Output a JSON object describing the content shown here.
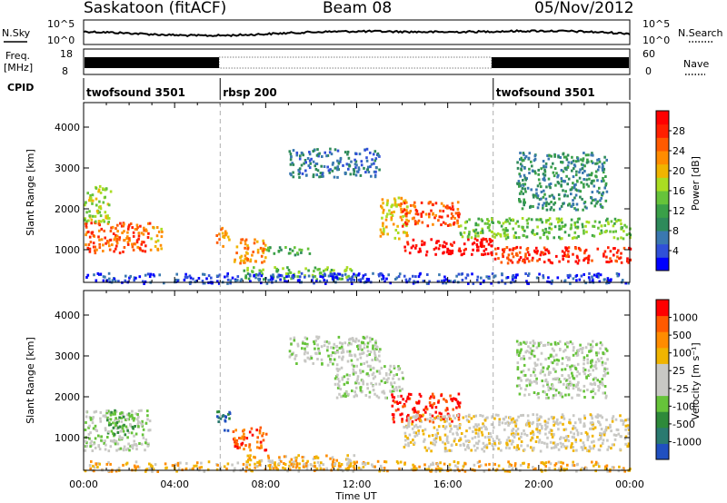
{
  "header": {
    "site": "Saskatoon (fitACF)",
    "beam": "Beam 08",
    "date": "05/Nov/2012"
  },
  "top_panels": {
    "nsky_label": "N.Sky",
    "nsearch_label": "N.Search",
    "freq_label_1": "Freq.",
    "freq_label_2": "[MHz]",
    "nave_label": "Nave",
    "cpid_label": "CPID",
    "noise_ticks_left": [
      "10^5",
      "10^0"
    ],
    "noise_ticks_right": [
      "10^5",
      "10^0"
    ],
    "freq_ticks": [
      "18",
      "8"
    ],
    "nave_ticks": [
      "60",
      "0"
    ]
  },
  "cpid_segments": [
    {
      "label": "twofsound 3501",
      "start_hour": 0,
      "end_hour": 6
    },
    {
      "label": "rbsp 200",
      "start_hour": 6,
      "end_hour": 18
    },
    {
      "label": "twofsound 3501",
      "start_hour": 18,
      "end_hour": 24
    }
  ],
  "chart_data": [
    {
      "type": "heatmap",
      "panel": "power",
      "ylabel": "Slant Range [km]",
      "x_range_hours": [
        0,
        24
      ],
      "ylim": [
        200,
        4600
      ],
      "y_ticks": [
        1000,
        2000,
        3000,
        4000
      ],
      "colorbar": {
        "label": "Power [dB]",
        "ticks": [
          "4",
          "8",
          "12",
          "16",
          "20",
          "24",
          "28"
        ],
        "colors": [
          "#0000ff",
          "#3050d8",
          "#3a78b0",
          "#2e8a5a",
          "#3aa048",
          "#66c33a",
          "#aadd22",
          "#f0b400",
          "#ff8c00",
          "#ff5a00",
          "#ff2000",
          "#ff0000"
        ]
      },
      "regions": [
        {
          "t0": 0.0,
          "t1": 2.9,
          "r0": 950,
          "r1": 1700,
          "c": 9
        },
        {
          "t0": 0.0,
          "t1": 1.2,
          "r0": 1700,
          "r1": 2600,
          "c": 6
        },
        {
          "t0": 2.9,
          "t1": 3.4,
          "r0": 1000,
          "r1": 1600,
          "c": 7
        },
        {
          "t0": 5.8,
          "t1": 6.4,
          "r0": 1100,
          "r1": 1600,
          "c": 8
        },
        {
          "t0": 6.5,
          "t1": 8.0,
          "r0": 700,
          "r1": 1300,
          "c": 8
        },
        {
          "t0": 8.0,
          "t1": 10.0,
          "r0": 900,
          "r1": 1100,
          "c": 4
        },
        {
          "t0": 7.0,
          "t1": 12.0,
          "r0": 300,
          "r1": 600,
          "c": 5
        },
        {
          "t0": 9.0,
          "t1": 13.0,
          "r0": 2800,
          "r1": 3500,
          "c": 2
        },
        {
          "t0": 13.0,
          "t1": 14.2,
          "r0": 1300,
          "r1": 2300,
          "c": 7
        },
        {
          "t0": 13.8,
          "t1": 16.5,
          "r0": 1600,
          "r1": 2200,
          "c": 9
        },
        {
          "t0": 14.0,
          "t1": 18.0,
          "r0": 900,
          "r1": 1300,
          "c": 11
        },
        {
          "t0": 16.5,
          "t1": 24.0,
          "r0": 1300,
          "r1": 1800,
          "c": 5
        },
        {
          "t0": 18.0,
          "t1": 24.0,
          "r0": 700,
          "r1": 1100,
          "c": 10
        },
        {
          "t0": 19.0,
          "t1": 23.0,
          "r0": 2000,
          "r1": 3400,
          "c": 3
        },
        {
          "t0": 0.0,
          "t1": 24.0,
          "r0": 200,
          "r1": 450,
          "c": 1
        }
      ]
    },
    {
      "type": "heatmap",
      "panel": "velocity",
      "ylabel": "Slant Range [km]",
      "xlabel": "Time UT",
      "x_range_hours": [
        0,
        24
      ],
      "x_ticks": [
        "00:00",
        "04:00",
        "08:00",
        "12:00",
        "16:00",
        "20:00",
        "00:00"
      ],
      "ylim": [
        200,
        4600
      ],
      "y_ticks": [
        1000,
        2000,
        3000,
        4000
      ],
      "colorbar": {
        "label": "Velocity [m s⁻¹]",
        "ticks": [
          "1000",
          "500",
          "100",
          "25",
          "-25",
          "-100",
          "-500",
          "-1000"
        ],
        "colors": [
          "#2050c0",
          "#2a7a70",
          "#2e8a3a",
          "#66c33a",
          "#c8c8c4",
          "#c8c8c4",
          "#f0b400",
          "#ff8c00",
          "#ff5a00",
          "#ff0000"
        ]
      },
      "regions": [
        {
          "t0": 0.0,
          "t1": 2.9,
          "r0": 700,
          "r1": 1700,
          "c": 4
        },
        {
          "t0": 1.0,
          "t1": 2.5,
          "r0": 1100,
          "r1": 1700,
          "c": 3
        },
        {
          "t0": 5.8,
          "t1": 6.4,
          "r0": 1200,
          "r1": 1700,
          "c": 1
        },
        {
          "t0": 6.5,
          "t1": 8.0,
          "r0": 700,
          "r1": 1300,
          "c": 8
        },
        {
          "t0": 7.0,
          "t1": 12.0,
          "r0": 300,
          "r1": 600,
          "c": 6
        },
        {
          "t0": 9.0,
          "t1": 13.0,
          "r0": 2800,
          "r1": 3500,
          "c": 4
        },
        {
          "t0": 11.0,
          "t1": 14.0,
          "r0": 2000,
          "r1": 2800,
          "c": 4
        },
        {
          "t0": 13.5,
          "t1": 16.5,
          "r0": 1400,
          "r1": 2100,
          "c": 9
        },
        {
          "t0": 14.0,
          "t1": 24.0,
          "r0": 700,
          "r1": 1600,
          "c": 5
        },
        {
          "t0": 19.0,
          "t1": 23.0,
          "r0": 2000,
          "r1": 3400,
          "c": 4
        },
        {
          "t0": 0.0,
          "t1": 24.0,
          "r0": 200,
          "r1": 450,
          "c": 6
        }
      ]
    }
  ]
}
